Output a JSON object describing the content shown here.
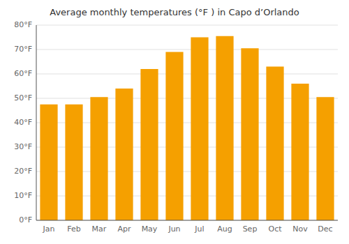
{
  "chart_data": {
    "type": "bar",
    "title": "Average monthly temperatures (°F ) in Capo d’Orlando",
    "categories": [
      "Jan",
      "Feb",
      "Mar",
      "Apr",
      "May",
      "Jun",
      "Jul",
      "Aug",
      "Sep",
      "Oct",
      "Nov",
      "Dec"
    ],
    "values": [
      47.5,
      47.5,
      50.5,
      54,
      62,
      69,
      75,
      75.5,
      70.5,
      63,
      56,
      50.5
    ],
    "color": "#F5A000",
    "ylim": [
      0,
      80
    ],
    "yticks": [
      {
        "value": 0,
        "label": "0°F"
      },
      {
        "value": 10,
        "label": "10°F"
      },
      {
        "value": 20,
        "label": "20°F"
      },
      {
        "value": 30,
        "label": "30°F"
      },
      {
        "value": 40,
        "label": "40°F"
      },
      {
        "value": 50,
        "label": "50°F"
      },
      {
        "value": 60,
        "label": "60°F"
      },
      {
        "value": 70,
        "label": "70°F"
      },
      {
        "value": 80,
        "label": "80°F"
      }
    ],
    "grid": true
  }
}
